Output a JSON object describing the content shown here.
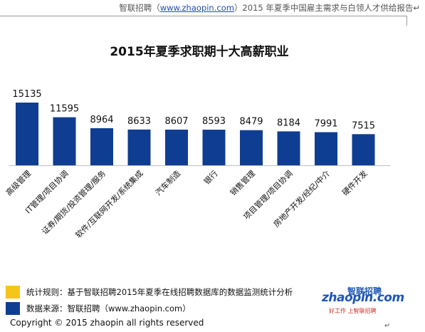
{
  "header": {
    "prefix": "智联招聘（",
    "link": "www.zhaopin.com",
    "suffix": "）2015 年夏季中国雇主需求与白领人才供给报告↵"
  },
  "chart_data": {
    "type": "bar",
    "title": "2015年夏季求职期十大高薪职业",
    "categories": [
      "高级管理",
      "IT管理/项目协调",
      "证券/期货/投资管理/服务",
      "软件/互联网开发/系统集成",
      "汽车制造",
      "银行",
      "销售管理",
      "项目管理/项目协调",
      "房地产开发/经纪/中介",
      "硬件开发"
    ],
    "values": [
      15135,
      11595,
      8964,
      8633,
      8607,
      8593,
      8479,
      8184,
      7991,
      7515
    ],
    "ylim": [
      0,
      16000
    ],
    "grid": false,
    "bar_color": "#0f3d91"
  },
  "legend": [
    {
      "text": "统计规则：基于智联招聘2015年夏季在线招聘数据库的数据监测统计分析",
      "color": "#f5c518"
    },
    {
      "text": "数据来源：智联招聘（www.zhaopin.com）",
      "color": "#0f3d91"
    }
  ],
  "logo": {
    "main": "zhaopin.com",
    "cn": "智联招聘",
    "slogan": "好工作 上智联招聘"
  },
  "copyright": "Copyright   ©  2015  zhaopin all rights reserved",
  "para_mark": "↵"
}
